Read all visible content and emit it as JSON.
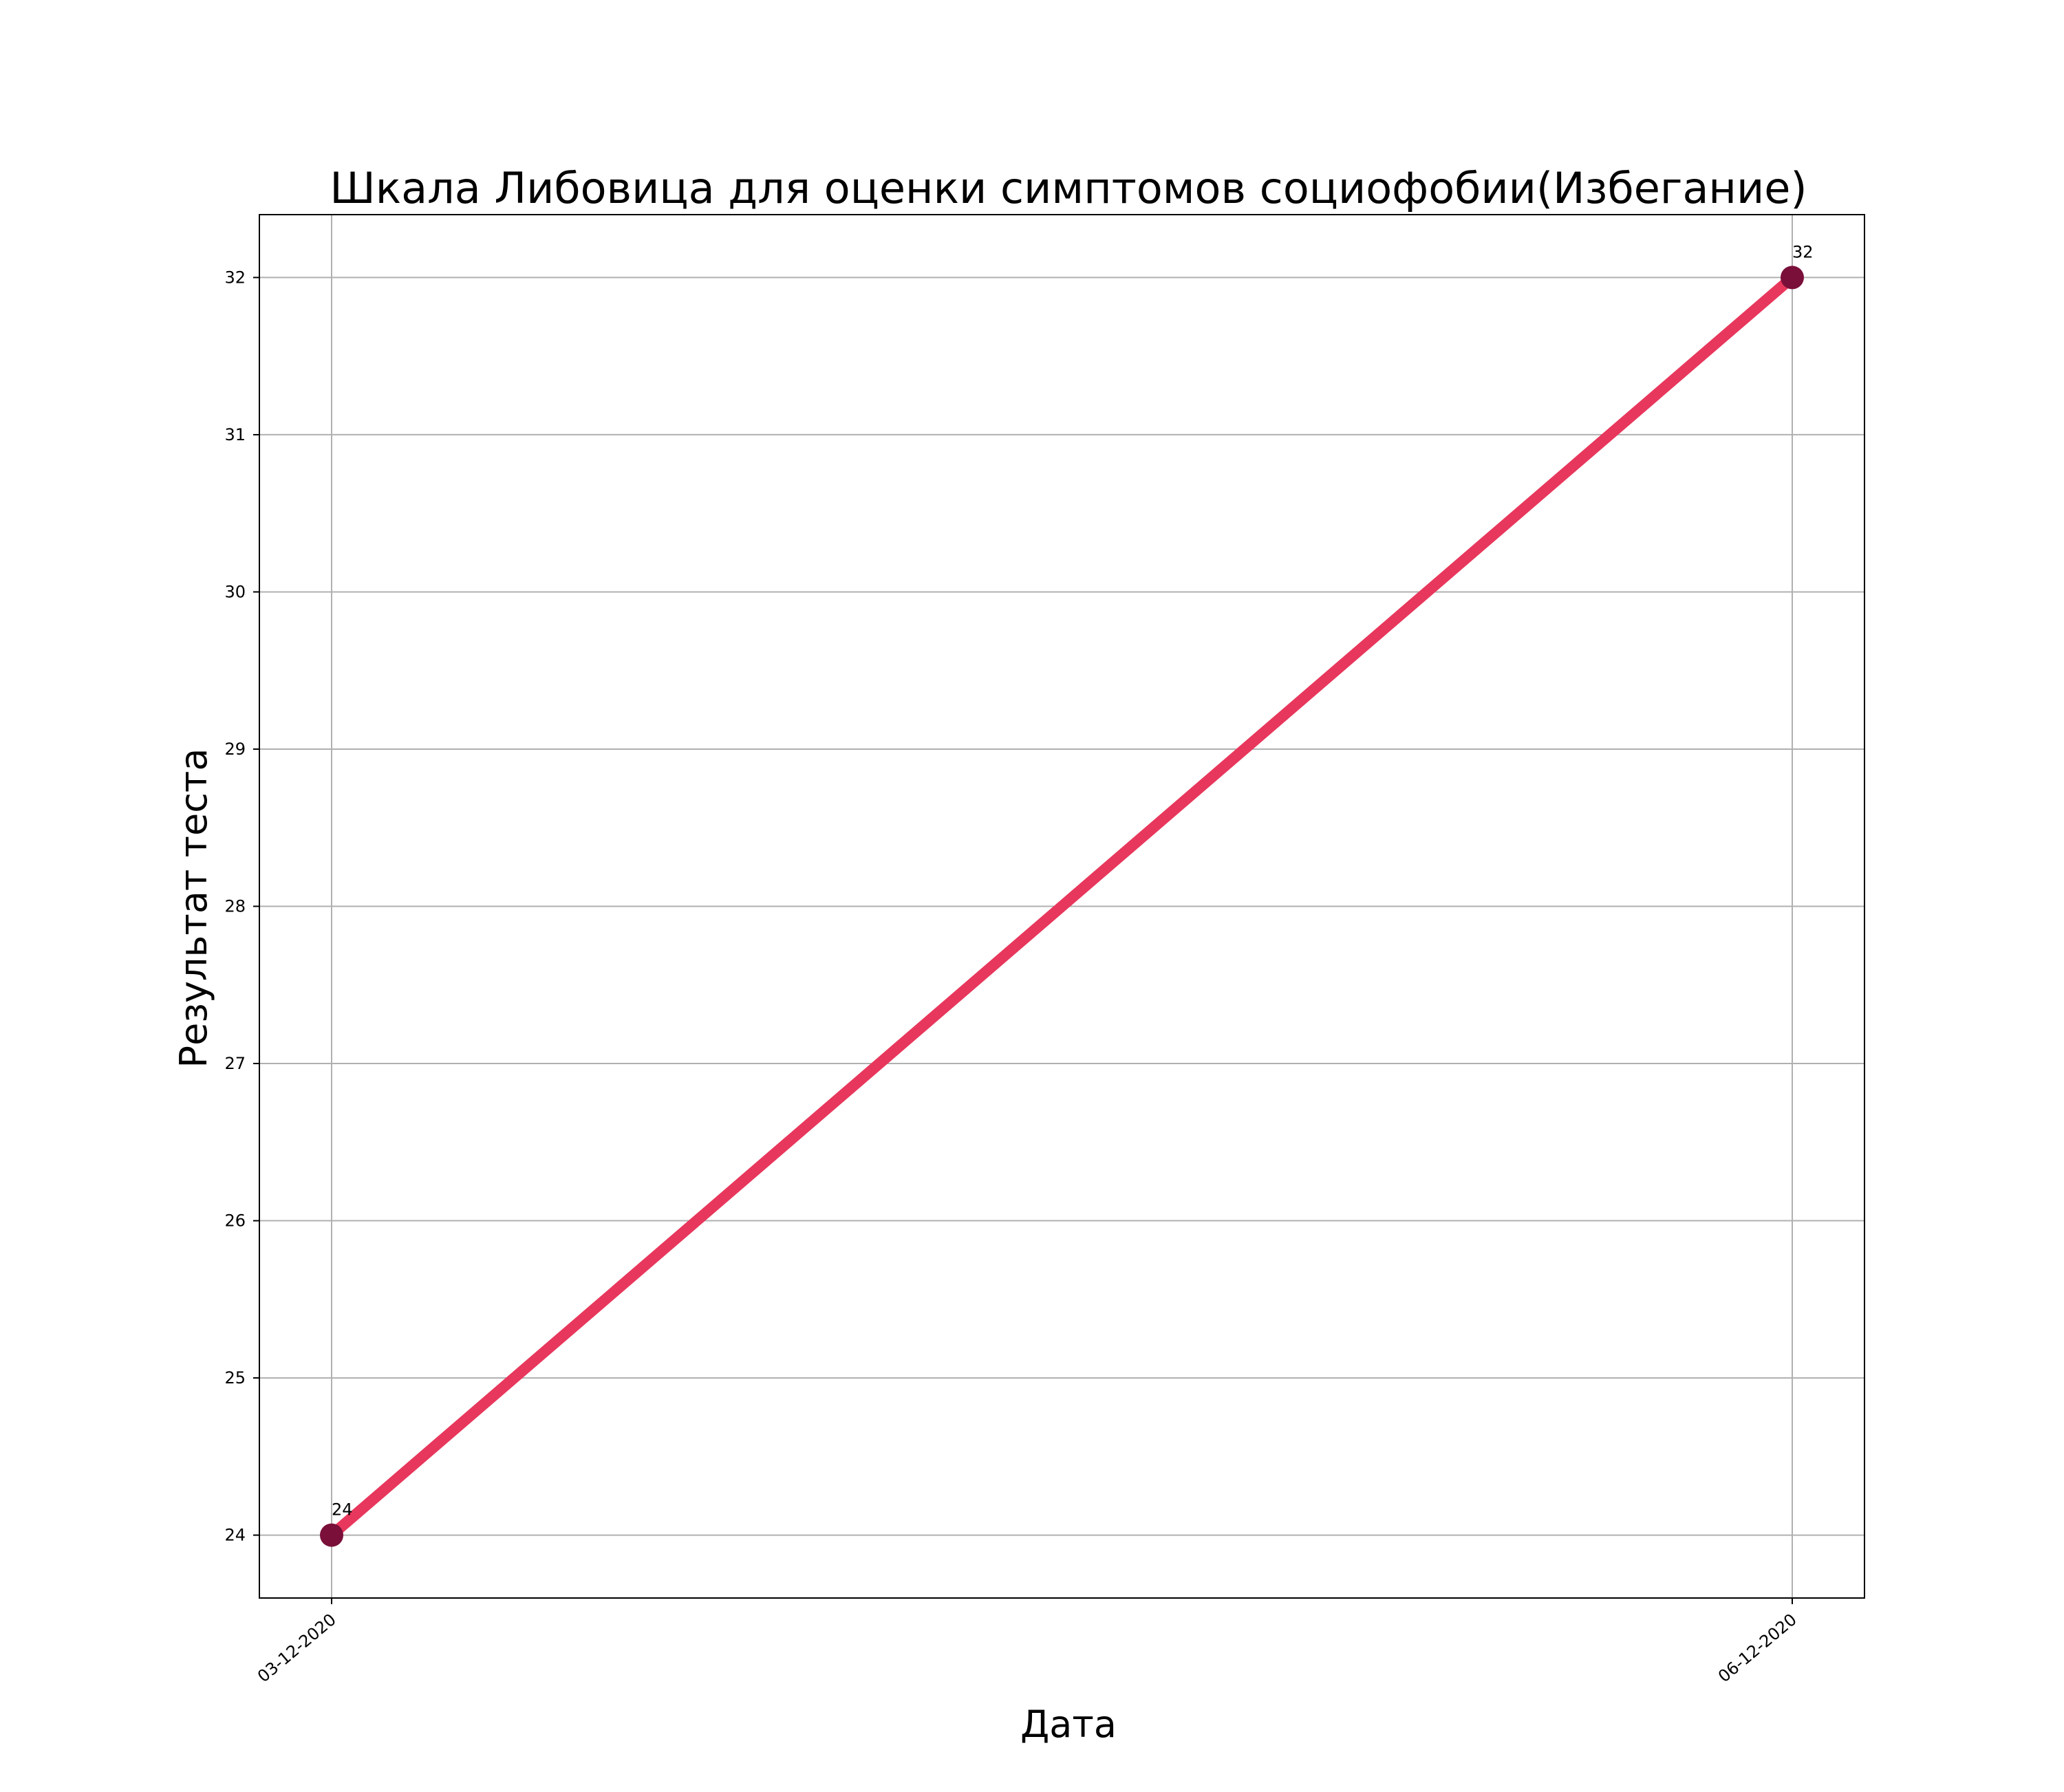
{
  "chart_data": {
    "type": "line",
    "title": "Шкала Либовица для оценки симптомов социофобии(Избегание)",
    "xlabel": "Дата",
    "ylabel": "Результат теста",
    "categories": [
      "03-12-2020",
      "06-12-2020"
    ],
    "series": [
      {
        "values": [
          24,
          32
        ]
      }
    ],
    "data_labels": [
      "24",
      "32"
    ],
    "ylim": [
      23.6,
      32.4
    ],
    "yticks": [
      24,
      25,
      26,
      27,
      28,
      29,
      30,
      31,
      32
    ],
    "grid": true,
    "colors": {
      "line": "#e8375c",
      "marker": "#7a0f3a",
      "grid": "#b0b0b0",
      "axes": "#000000"
    }
  }
}
